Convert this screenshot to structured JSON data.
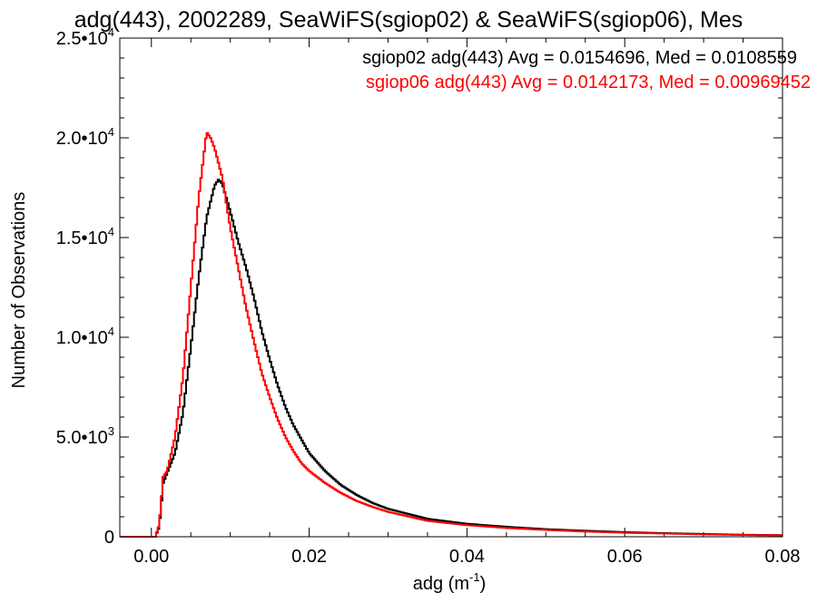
{
  "chart_data": {
    "type": "line",
    "title": "adg(443), 2002289, SeaWiFS(sgiop02) & SeaWiFS(sgiop06), Mes",
    "xlabel": "adg (m",
    "xlabel_sup": "-1",
    "xlabel_close": ")",
    "ylabel": "Number of Observations",
    "xlim": [
      -0.004,
      0.08
    ],
    "ylim": [
      0,
      25000
    ],
    "grid": false,
    "legend_position": "top-right",
    "x_ticks": [
      {
        "value": 0.0,
        "label": "0.00"
      },
      {
        "value": 0.02,
        "label": "0.02"
      },
      {
        "value": 0.04,
        "label": "0.04"
      },
      {
        "value": 0.06,
        "label": "0.06"
      },
      {
        "value": 0.08,
        "label": "0.08"
      }
    ],
    "y_ticks": [
      {
        "value": 0,
        "label": "0",
        "sup": ""
      },
      {
        "value": 5000,
        "label": "5.0•10",
        "sup": "3"
      },
      {
        "value": 10000,
        "label": "1.0•10",
        "sup": "4"
      },
      {
        "value": 15000,
        "label": "1.5•10",
        "sup": "4"
      },
      {
        "value": 20000,
        "label": "2.0•10",
        "sup": "4"
      },
      {
        "value": 25000,
        "label": "2.5•10",
        "sup": "4"
      }
    ],
    "series": [
      {
        "legend_text": "sgiop02 adg(443) Avg = 0.0154696, Med = 0.0108559",
        "color": "#000000",
        "points": [
          [
            -0.004,
            0
          ],
          [
            0.0005,
            0
          ],
          [
            0.001,
            500
          ],
          [
            0.0015,
            2700
          ],
          [
            0.002,
            3200
          ],
          [
            0.003,
            4200
          ],
          [
            0.004,
            6200
          ],
          [
            0.005,
            9500
          ],
          [
            0.006,
            13000
          ],
          [
            0.007,
            16000
          ],
          [
            0.008,
            17600
          ],
          [
            0.0085,
            17900
          ],
          [
            0.009,
            17700
          ],
          [
            0.01,
            16300
          ],
          [
            0.011,
            14800
          ],
          [
            0.012,
            13500
          ],
          [
            0.013,
            12000
          ],
          [
            0.014,
            10300
          ],
          [
            0.015,
            8900
          ],
          [
            0.016,
            7600
          ],
          [
            0.017,
            6500
          ],
          [
            0.018,
            5600
          ],
          [
            0.019,
            4900
          ],
          [
            0.02,
            4200
          ],
          [
            0.022,
            3300
          ],
          [
            0.024,
            2600
          ],
          [
            0.026,
            2100
          ],
          [
            0.028,
            1700
          ],
          [
            0.03,
            1400
          ],
          [
            0.035,
            900
          ],
          [
            0.04,
            650
          ],
          [
            0.045,
            500
          ],
          [
            0.05,
            380
          ],
          [
            0.055,
            300
          ],
          [
            0.06,
            230
          ],
          [
            0.065,
            180
          ],
          [
            0.07,
            140
          ],
          [
            0.075,
            100
          ],
          [
            0.08,
            80
          ]
        ]
      },
      {
        "legend_text": "sgiop06 adg(443) Avg = 0.0142173, Med = 0.00969452",
        "color": "#ff0000",
        "points": [
          [
            -0.004,
            0
          ],
          [
            0.0005,
            0
          ],
          [
            0.001,
            600
          ],
          [
            0.0015,
            3000
          ],
          [
            0.002,
            3300
          ],
          [
            0.003,
            5000
          ],
          [
            0.004,
            8000
          ],
          [
            0.005,
            12500
          ],
          [
            0.006,
            17000
          ],
          [
            0.007,
            20300
          ],
          [
            0.0075,
            20000
          ],
          [
            0.008,
            19500
          ],
          [
            0.009,
            18000
          ],
          [
            0.01,
            15500
          ],
          [
            0.011,
            13500
          ],
          [
            0.012,
            11500
          ],
          [
            0.013,
            9800
          ],
          [
            0.014,
            8200
          ],
          [
            0.015,
            7000
          ],
          [
            0.016,
            5900
          ],
          [
            0.017,
            5000
          ],
          [
            0.018,
            4300
          ],
          [
            0.019,
            3700
          ],
          [
            0.02,
            3300
          ],
          [
            0.022,
            2700
          ],
          [
            0.024,
            2200
          ],
          [
            0.026,
            1800
          ],
          [
            0.028,
            1500
          ],
          [
            0.03,
            1250
          ],
          [
            0.035,
            800
          ],
          [
            0.04,
            580
          ],
          [
            0.045,
            440
          ],
          [
            0.05,
            340
          ],
          [
            0.055,
            260
          ],
          [
            0.06,
            200
          ],
          [
            0.065,
            160
          ],
          [
            0.07,
            120
          ],
          [
            0.075,
            90
          ],
          [
            0.08,
            70
          ]
        ]
      }
    ]
  }
}
